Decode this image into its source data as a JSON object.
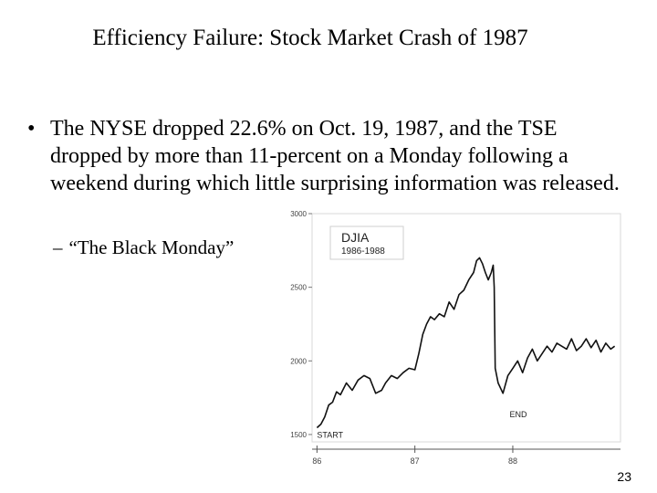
{
  "slide": {
    "title": "Efficiency Failure: Stock Market Crash of 1987",
    "bullet_marker": "•",
    "bullet_text": "The NYSE dropped 22.6% on Oct. 19, 1987,  and the TSE dropped by more than 11-percent on a Monday following a weekend during which little surprising information was released.",
    "sub_marker": "–",
    "sub_bullet": "“The Black Monday”",
    "page_number": "23"
  },
  "chart_data": {
    "type": "line",
    "title": "DJIA",
    "subtitle": "1986-1988",
    "ytick_labels": [
      "3000",
      "2500",
      "2000",
      "1500"
    ],
    "yticks": [
      3000,
      2500,
      2000,
      1500
    ],
    "ylim": [
      1450,
      3000
    ],
    "xtick_labels": [
      "86",
      "87",
      "88"
    ],
    "xticks": [
      1986.0,
      1987.0,
      1988.0
    ],
    "xlim": [
      1985.95,
      1989.1
    ],
    "annotations": [
      {
        "text": "START",
        "x": 1986.0,
        "y": 1546
      },
      {
        "text": "END",
        "x": 1988.08,
        "y": 1780
      }
    ],
    "series": [
      {
        "x": [
          1986.0,
          1986.04,
          1986.08,
          1986.12,
          1986.16,
          1986.2,
          1986.24,
          1986.3,
          1986.36,
          1986.42,
          1986.48,
          1986.54,
          1986.6,
          1986.66,
          1986.7,
          1986.76,
          1986.82,
          1986.88,
          1986.94,
          1987.0,
          1987.04,
          1987.08,
          1987.12,
          1987.16,
          1987.2,
          1987.25,
          1987.3,
          1987.35,
          1987.4,
          1987.45,
          1987.5,
          1987.55,
          1987.6,
          1987.63,
          1987.66,
          1987.69,
          1987.72,
          1987.75,
          1987.78,
          1987.8,
          1987.81,
          1987.82,
          1987.85,
          1987.9,
          1987.95,
          1988.0,
          1988.05,
          1988.1,
          1988.15,
          1988.2,
          1988.25,
          1988.3,
          1988.35,
          1988.4,
          1988.45,
          1988.5,
          1988.55,
          1988.6,
          1988.65,
          1988.7,
          1988.75,
          1988.8,
          1988.85,
          1988.9,
          1988.95,
          1989.0,
          1989.04
        ],
        "y": [
          1546,
          1570,
          1620,
          1700,
          1720,
          1790,
          1770,
          1850,
          1800,
          1870,
          1900,
          1880,
          1780,
          1800,
          1850,
          1900,
          1880,
          1920,
          1950,
          1940,
          2050,
          2180,
          2250,
          2300,
          2280,
          2320,
          2300,
          2400,
          2350,
          2450,
          2480,
          2550,
          2600,
          2680,
          2700,
          2660,
          2600,
          2550,
          2600,
          2650,
          2500,
          1950,
          1850,
          1780,
          1900,
          1950,
          2000,
          1920,
          2020,
          2080,
          2000,
          2050,
          2100,
          2060,
          2120,
          2100,
          2080,
          2150,
          2070,
          2100,
          2150,
          2090,
          2140,
          2060,
          2120,
          2080,
          2100
        ]
      }
    ],
    "grid": false,
    "legend": "none"
  }
}
